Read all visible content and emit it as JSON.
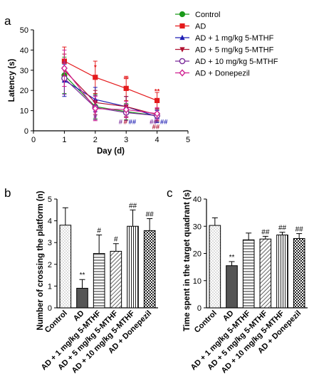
{
  "chart_data": [
    {
      "panel": "a",
      "type": "line",
      "xlabel": "Day (d)",
      "ylabel": "Latency (s)",
      "xlim": [
        0,
        5
      ],
      "ylim": [
        0,
        50
      ],
      "x_ticks": [
        "0",
        "1",
        "2",
        "3",
        "4",
        "5"
      ],
      "y_ticks": [
        "0",
        "10",
        "20",
        "30",
        "40",
        "50"
      ],
      "x": [
        1,
        2,
        3,
        4
      ],
      "legend_position": "top-right",
      "series": [
        {
          "name": "Control",
          "color": "#1a9a1a",
          "marker": "circle",
          "values": [
            27.5,
            12.0,
            9.5,
            7.5
          ],
          "err": [
            9,
            6,
            4,
            3
          ]
        },
        {
          "name": "AD",
          "color": "#e41a1c",
          "marker": "square",
          "values": [
            34.5,
            26.5,
            21.0,
            15.0
          ],
          "err": [
            7,
            8,
            6,
            4
          ]
        },
        {
          "name": "AD + 1 mg/kg 5-MTHF",
          "color": "#1f1fb4",
          "marker": "triangle-up",
          "values": [
            25.0,
            15.5,
            12.0,
            7.0
          ],
          "err": [
            8,
            6,
            5,
            3
          ]
        },
        {
          "name": "AD + 5 mg/kg 5-MTHF",
          "color": "#b01030",
          "marker": "triangle-down",
          "values": [
            30.0,
            14.0,
            12.0,
            8.0
          ],
          "err": [
            8,
            6,
            5,
            3
          ]
        },
        {
          "name": "AD + 10 mg/kg 5-MTHF",
          "color": "#7a2a9a",
          "marker": "circle-open",
          "values": [
            26.0,
            11.5,
            9.0,
            7.5
          ],
          "err": [
            8,
            6,
            4,
            3
          ]
        },
        {
          "name": "AD + Donepezil",
          "color": "#d02090",
          "marker": "diamond-open",
          "values": [
            31.0,
            11.0,
            10.5,
            8.5
          ],
          "err": [
            9,
            6,
            4,
            3
          ]
        }
      ],
      "annotations": [
        {
          "text": "*",
          "x": 2,
          "y": 30.5,
          "color": "#e41a1c"
        },
        {
          "text": "**",
          "x": 3,
          "y": 24.5,
          "color": "#e41a1c"
        },
        {
          "text": "**",
          "x": 4,
          "y": 18.5,
          "color": "#e41a1c"
        },
        {
          "text": "#",
          "x": 2,
          "y": 8.5,
          "color": "#d02090"
        },
        {
          "text": "#",
          "x": 2,
          "y": 6.0,
          "color": "#7a2a9a"
        },
        {
          "text": "#",
          "x": 2.82,
          "y": 3.3,
          "color": "#7a2a9a"
        },
        {
          "text": "#",
          "x": 2.98,
          "y": 3.3,
          "color": "#b01030"
        },
        {
          "text": "##",
          "x": 3.2,
          "y": 3.3,
          "color": "#1f1fb4"
        },
        {
          "text": "##",
          "x": 3.88,
          "y": 3.3,
          "color": "#7a2a9a"
        },
        {
          "text": "##",
          "x": 4.22,
          "y": 3.3,
          "color": "#1f1fb4"
        },
        {
          "text": "##",
          "x": 3.96,
          "y": 0.8,
          "color": "#b01030"
        }
      ]
    },
    {
      "panel": "b",
      "type": "bar",
      "ylabel": "Number of crossing the platform (n)",
      "ylim": [
        0,
        5
      ],
      "y_ticks": [
        "0",
        "1",
        "2",
        "3",
        "4",
        "5"
      ],
      "categories": [
        "Control",
        "AD",
        "AD + 1 mg/kg 5-MTHF",
        "AD + 5 mg/kg 5-MTHF",
        "AD + 10 mg/kg 5-MTHF",
        "AD + Donepezil"
      ],
      "values": [
        3.8,
        0.9,
        2.5,
        2.6,
        3.75,
        3.55
      ],
      "err": [
        0.8,
        0.4,
        0.85,
        0.35,
        0.75,
        0.55
      ],
      "significance": [
        "",
        "**",
        "#",
        "#",
        "##",
        "##"
      ]
    },
    {
      "panel": "c",
      "type": "bar",
      "ylabel": "Time spent in the target quadrant (s)",
      "ylim": [
        0,
        40
      ],
      "y_ticks": [
        "0",
        "10",
        "20",
        "30",
        "40"
      ],
      "categories": [
        "Control",
        "AD",
        "AD + 1 mg/kg 5-MTHF",
        "AD + 5 mg/kg 5-MTHF",
        "AD + 10 mg/kg 5-MTHF",
        "AD + Donepezil"
      ],
      "values": [
        30.3,
        15.5,
        25.0,
        25.3,
        26.8,
        25.5
      ],
      "err": [
        2.8,
        1.5,
        2.5,
        1.0,
        1.0,
        1.8
      ],
      "significance": [
        "",
        "**",
        "",
        "##",
        "##",
        "##"
      ]
    }
  ]
}
